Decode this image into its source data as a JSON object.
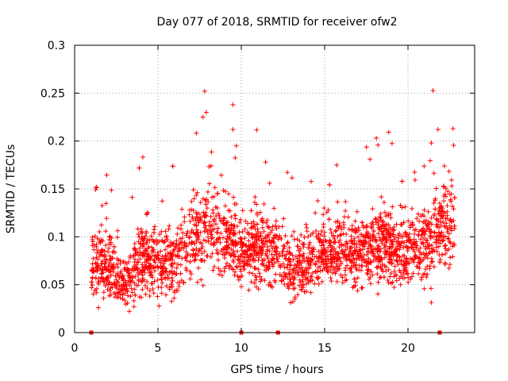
{
  "chart_data": {
    "type": "scatter",
    "title": "Day 077 of 2018, SRMTID for receiver ofw2",
    "xlabel": "GPS time / hours",
    "ylabel": "SRMTID / TECUs",
    "xlim": [
      0,
      24
    ],
    "ylim": [
      0,
      0.3
    ],
    "xticks": [
      0,
      5,
      10,
      15,
      20
    ],
    "xtick_labels": [
      "0",
      "5",
      "10",
      "15",
      "20"
    ],
    "yticks": [
      0,
      0.05,
      0.1,
      0.15,
      0.2,
      0.25,
      0.3
    ],
    "ytick_labels": [
      "0",
      "0.05",
      "0.1",
      "0.15",
      "0.2",
      "0.25",
      "0.3"
    ],
    "grid": true,
    "marker": "+",
    "color": "#ff0000",
    "x_range_of_points": [
      1.0,
      22.8
    ],
    "density_profile": [
      {
        "x": 1.0,
        "center": 0.07,
        "spread": 0.03
      },
      {
        "x": 2.0,
        "center": 0.072,
        "spread": 0.03
      },
      {
        "x": 3.0,
        "center": 0.052,
        "spread": 0.022
      },
      {
        "x": 4.0,
        "center": 0.075,
        "spread": 0.035
      },
      {
        "x": 5.0,
        "center": 0.072,
        "spread": 0.03
      },
      {
        "x": 6.0,
        "center": 0.075,
        "spread": 0.03
      },
      {
        "x": 7.0,
        "center": 0.1,
        "spread": 0.04
      },
      {
        "x": 8.0,
        "center": 0.105,
        "spread": 0.04
      },
      {
        "x": 9.0,
        "center": 0.1,
        "spread": 0.038
      },
      {
        "x": 10.0,
        "center": 0.085,
        "spread": 0.03
      },
      {
        "x": 11.0,
        "center": 0.09,
        "spread": 0.03
      },
      {
        "x": 12.0,
        "center": 0.085,
        "spread": 0.03
      },
      {
        "x": 13.0,
        "center": 0.065,
        "spread": 0.03
      },
      {
        "x": 14.0,
        "center": 0.075,
        "spread": 0.03
      },
      {
        "x": 15.0,
        "center": 0.085,
        "spread": 0.03
      },
      {
        "x": 16.0,
        "center": 0.085,
        "spread": 0.032
      },
      {
        "x": 17.0,
        "center": 0.085,
        "spread": 0.032
      },
      {
        "x": 18.0,
        "center": 0.09,
        "spread": 0.035
      },
      {
        "x": 19.0,
        "center": 0.09,
        "spread": 0.035
      },
      {
        "x": 20.0,
        "center": 0.085,
        "spread": 0.032
      },
      {
        "x": 21.0,
        "center": 0.09,
        "spread": 0.04
      },
      {
        "x": 22.0,
        "center": 0.11,
        "spread": 0.04
      },
      {
        "x": 22.8,
        "center": 0.11,
        "spread": 0.04
      }
    ],
    "notable_points": [
      {
        "x": 7.8,
        "y": 0.252
      },
      {
        "x": 7.9,
        "y": 0.23
      },
      {
        "x": 7.7,
        "y": 0.225
      },
      {
        "x": 9.5,
        "y": 0.238
      },
      {
        "x": 9.5,
        "y": 0.212
      },
      {
        "x": 9.7,
        "y": 0.195
      },
      {
        "x": 21.8,
        "y": 0.212
      },
      {
        "x": 22.7,
        "y": 0.213
      },
      {
        "x": 21.4,
        "y": 0.198
      },
      {
        "x": 18.1,
        "y": 0.203
      },
      {
        "x": 1.3,
        "y": 0.152
      }
    ],
    "bottom_markers_x": [
      1.0,
      10.0,
      12.2,
      21.9
    ]
  }
}
